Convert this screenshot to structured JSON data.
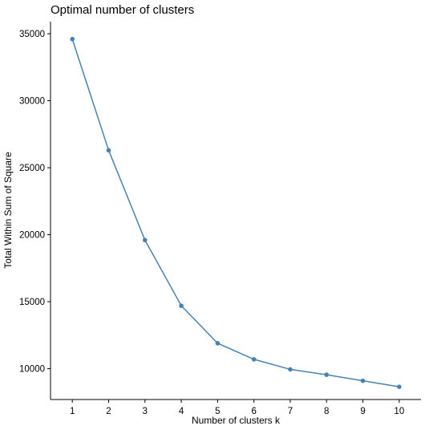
{
  "chart_data": {
    "type": "line",
    "title": "Optimal number of clusters",
    "xlabel": "Number of clusters k",
    "ylabel": "Total Within Sum of Square",
    "x": [
      1,
      2,
      3,
      4,
      5,
      6,
      7,
      8,
      9,
      10
    ],
    "x_ticks": [
      "1",
      "2",
      "3",
      "4",
      "5",
      "6",
      "7",
      "8",
      "9",
      "10"
    ],
    "y_ticks": [
      "10000",
      "15000",
      "20000",
      "25000",
      "30000",
      "35000"
    ],
    "y_tick_values": [
      10000,
      15000,
      20000,
      25000,
      30000,
      35000
    ],
    "series": [
      {
        "values": [
          34600,
          26300,
          19600,
          14700,
          11900,
          10700,
          9950,
          9550,
          9100,
          8650
        ],
        "color": "#4682B4"
      }
    ],
    "xlim": [
      0.4,
      10.6
    ],
    "ylim": [
      7700,
      35900
    ],
    "grid": false,
    "legend": "none"
  }
}
